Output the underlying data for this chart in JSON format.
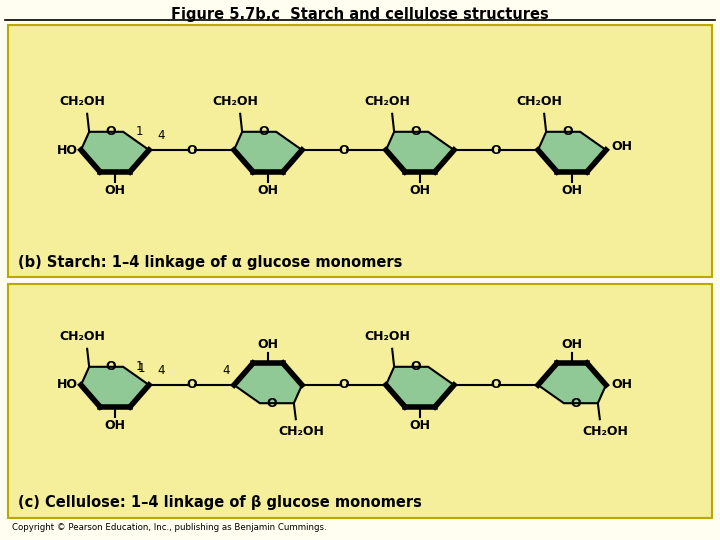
{
  "title": "Figure 5.7b,c  Starch and cellulose structures",
  "panel_bg": "#F5EE9A",
  "ring_fill": "#90C896",
  "ring_edge": "#000000",
  "text_color": "#000000",
  "label_b": "(b) Starch: 1–4 linkage of α glucose monomers",
  "label_c": "(c) Cellulose: 1–4 linkage of β glucose monomers",
  "copyright": "Copyright © Pearson Education, Inc., publishing as Benjamin Cummings.",
  "fig_width": 7.2,
  "fig_height": 5.4
}
